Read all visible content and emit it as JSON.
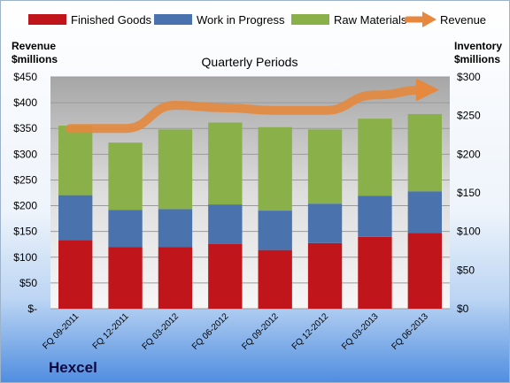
{
  "company": "Hexcel",
  "chart_data": {
    "type": "bar",
    "stacked": true,
    "title": "Quarterly Periods",
    "categories": [
      "FQ 09-2011",
      "FQ 12-2011",
      "FQ 03-2012",
      "FQ 06-2012",
      "FQ 09-2012",
      "FQ 12-2012",
      "FQ 03-2013",
      "FQ 06-2013"
    ],
    "series": [
      {
        "name": "Finished Goods",
        "axis": "right",
        "color": "#c0151b",
        "values": [
          89,
          80,
          80,
          84,
          76,
          85,
          93,
          98
        ]
      },
      {
        "name": "Work in Progress",
        "axis": "right",
        "color": "#4a72ac",
        "values": [
          58,
          48,
          49,
          51,
          51,
          51,
          53,
          54
        ]
      },
      {
        "name": "Raw Materials",
        "axis": "right",
        "color": "#8ab04a",
        "values": [
          90,
          87,
          103,
          106,
          108,
          96,
          100,
          100
        ]
      },
      {
        "name": "Revenue",
        "axis": "left",
        "type": "line",
        "color": "#e6883e",
        "values": [
          350,
          350,
          395,
          390,
          385,
          385,
          415,
          425
        ]
      }
    ],
    "ylabel_left": "Revenue\n$millions",
    "ylabel_right": "Inventory\n$millions",
    "ylim_left": [
      0,
      450
    ],
    "ylim_right": [
      0,
      300
    ],
    "yticks_left": [
      "$-",
      "$50",
      "$100",
      "$150",
      "$200",
      "$250",
      "$300",
      "$350",
      "$400",
      "$450"
    ],
    "yticks_right": [
      "$0",
      "$50",
      "$100",
      "$150",
      "$200",
      "$250",
      "$300"
    ],
    "grid": true,
    "legend": "top"
  }
}
